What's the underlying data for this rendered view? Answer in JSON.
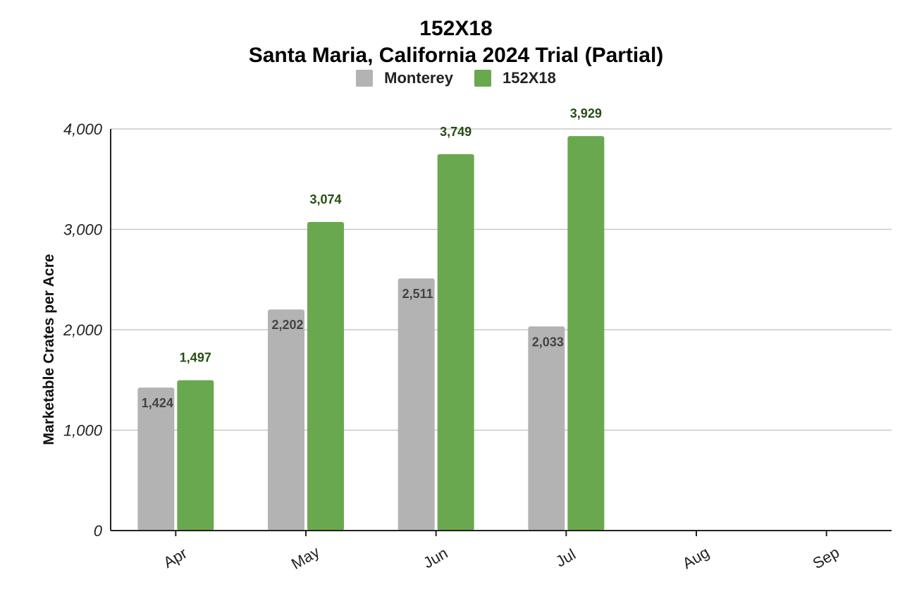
{
  "chart_data": {
    "type": "bar",
    "title": "152X18",
    "subtitle": "Santa Maria, California 2024 Trial (Partial)",
    "xlabel": "",
    "ylabel": "Marketable Crates per Acre",
    "categories": [
      "Apr",
      "May",
      "Jun",
      "Jul",
      "Aug",
      "Sep"
    ],
    "series": [
      {
        "name": "Monterey",
        "values": [
          1424,
          2202,
          2511,
          2033,
          null,
          null
        ],
        "labels": [
          "1,424",
          "2,202",
          "2,511",
          "2,033",
          "",
          ""
        ],
        "color": "#b3b3b3",
        "label_color": "#444444"
      },
      {
        "name": "152X18",
        "values": [
          1497,
          3074,
          3749,
          3929,
          null,
          null
        ],
        "labels": [
          "1,497",
          "3,074",
          "3,749",
          "3,929",
          "",
          ""
        ],
        "color": "#6aa84f",
        "label_color": "#274e13"
      }
    ],
    "ylim": [
      0,
      4000
    ],
    "yticks": [
      0,
      1000,
      2000,
      3000,
      4000
    ],
    "ytick_labels": [
      "0",
      "1,000",
      "2,000",
      "3,000",
      "4,000"
    ],
    "grid": true,
    "legend_position": "top"
  }
}
